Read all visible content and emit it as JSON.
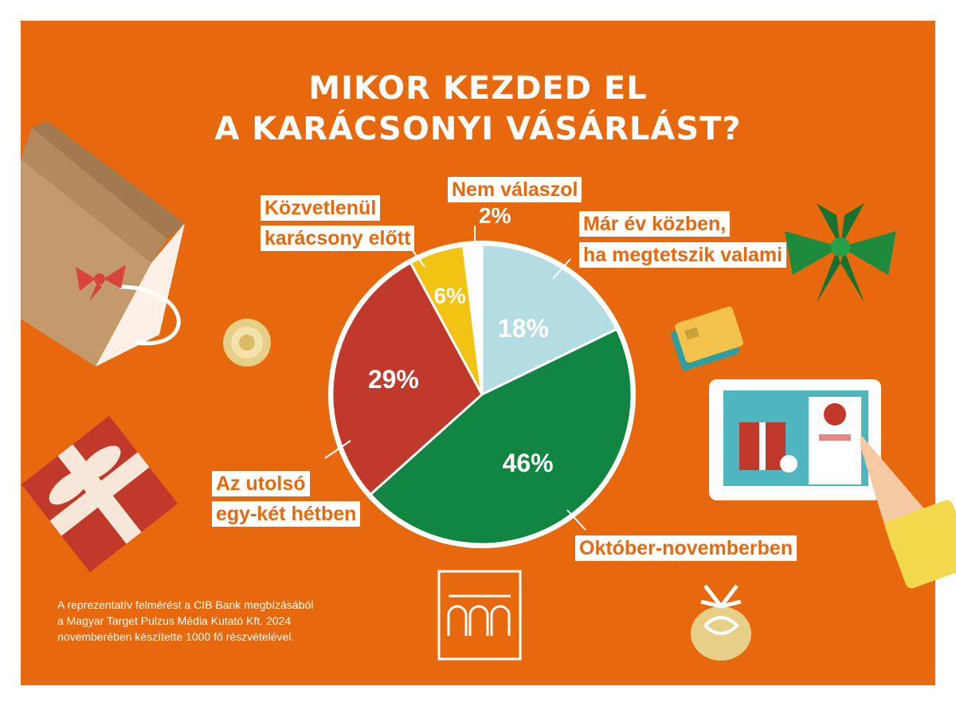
{
  "title": {
    "line1": "MIKOR KEZDED EL",
    "line2": "A KARÁCSONYI VÁSÁRLÁST?"
  },
  "chart_data": {
    "type": "pie",
    "title": "MIKOR KEZDED EL A KARÁCSONYI VÁSÁRLÁST?",
    "slices": [
      {
        "label_lines": [
          "Már év közben,",
          "ha megtetszik valami"
        ],
        "value": 18,
        "value_label": "18%",
        "color": "#b3dde3",
        "value_color": "#ffffff"
      },
      {
        "label_lines": [
          "Október-novemberben"
        ],
        "value": 46,
        "value_label": "46%",
        "color": "#118642",
        "value_color": "#ffffff"
      },
      {
        "label_lines": [
          "Az utolsó",
          "egy-két hétben"
        ],
        "value": 29,
        "value_label": "29%",
        "color": "#c0392b",
        "value_color": "#ffffff"
      },
      {
        "label_lines": [
          "Közvetlenül",
          "karácsony előtt"
        ],
        "value": 6,
        "value_label": "6%",
        "color": "#f2c313",
        "value_color": "#ffffff"
      },
      {
        "label_lines": [
          "Nem válaszol"
        ],
        "value": 2,
        "value_label": "2%",
        "color": "#ffffff",
        "value_color": "#ffffff"
      }
    ]
  },
  "labels": {
    "nem_valaszol": "Nem válaszol",
    "nem_valaszol_value": "2%",
    "kozvetlenul_1": "Közvetlenül",
    "kozvetlenul_2": "karácsony előtt",
    "mar_ev_1": "Már év közben,",
    "mar_ev_2": "ha megtetszik valami",
    "utolso_1": "Az utolsó",
    "utolso_2": "egy-két hétben",
    "oktober": "Október-novemberben"
  },
  "footnote": {
    "line1": "A reprezentatív felmérést a CIB Bank megbízásából",
    "line2": "a Magyar Target Pulzus Média Kutató Kft. 2024",
    "line3": "novemberében készítette 1000 fő részvételével."
  },
  "colors": {
    "background": "#e8690d",
    "text": "#ffffff"
  },
  "icons": [
    "paper-bag-icon",
    "gold-bow-icon",
    "gift-box-icon",
    "green-bow-icon",
    "credit-card-icon",
    "tablet-shop-icon",
    "ornament-icon",
    "cib-logo-icon"
  ]
}
